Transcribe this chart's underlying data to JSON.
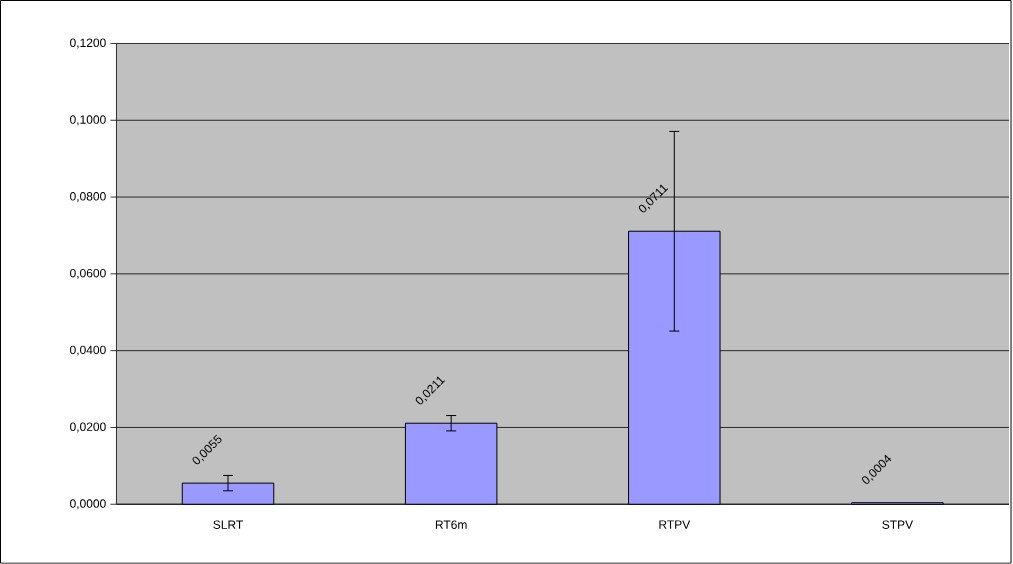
{
  "chart_data": {
    "type": "bar",
    "categories": [
      "SLRT",
      "RT6m",
      "RTPV",
      "STPV"
    ],
    "values": [
      0.0055,
      0.0211,
      0.0711,
      0.0004
    ],
    "errors": [
      0.002,
      0.002,
      0.026,
      null
    ],
    "value_labels": [
      "0,0055",
      "0,0211",
      "0,0711",
      "0,0004"
    ],
    "color": "#9999ff",
    "ylim": [
      0,
      0.12
    ],
    "yticks": [
      {
        "value": 0,
        "label": "0,0000"
      },
      {
        "value": 0.02,
        "label": "0,0200"
      },
      {
        "value": 0.04,
        "label": "0,0400"
      },
      {
        "value": 0.06,
        "label": "0,0600"
      },
      {
        "value": 0.08,
        "label": "0,0800"
      },
      {
        "value": 0.1,
        "label": "0,1000"
      },
      {
        "value": 0.12,
        "label": "0,1200"
      }
    ],
    "grid": "y"
  }
}
